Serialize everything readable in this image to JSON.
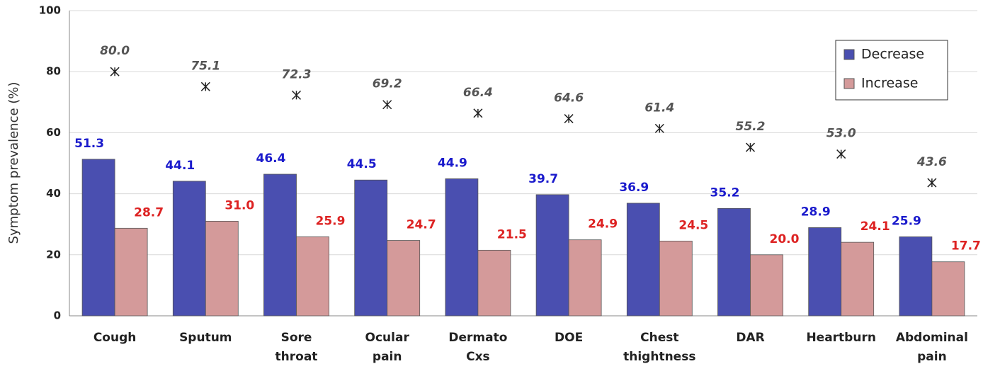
{
  "chart_data": {
    "type": "bar",
    "y_label": "Symptom prevalence (%)",
    "categories": [
      "Cough",
      "Sputum",
      "Sore throat",
      "Ocular pain",
      "Dermato Cxs",
      "DOE",
      "Chest thightness",
      "DAR",
      "Heartburn",
      "Abdominal pain"
    ],
    "series": [
      {
        "name": "Decrease",
        "color": "#4a4fb0",
        "label_color": "#1a1acc",
        "values": [
          51.3,
          44.1,
          46.4,
          44.5,
          44.9,
          39.7,
          36.9,
          35.2,
          28.9,
          25.9
        ]
      },
      {
        "name": "Increase",
        "color": "#d49a9a",
        "label_color": "#dd2222",
        "values": [
          28.7,
          31.0,
          25.9,
          24.7,
          21.5,
          24.9,
          24.5,
          20.0,
          24.1,
          17.7
        ],
        "value_labels": [
          "28.7",
          "31.0",
          "25.9",
          "24.7",
          "21.5",
          "24.9",
          "24.5",
          "20.0",
          "24.1",
          "17.7"
        ]
      },
      {
        "type": "scatter",
        "marker": "asterisk",
        "color": "#222222",
        "label_color": "#555555",
        "values": [
          80.0,
          75.1,
          72.3,
          69.2,
          66.4,
          64.6,
          61.4,
          55.2,
          53.0,
          43.6
        ],
        "value_labels": [
          "80.0",
          "75.1",
          "72.3",
          "69.2",
          "66.4",
          "64.6",
          "61.4",
          "55.2",
          "53.0",
          "43.6"
        ]
      }
    ],
    "ylim": [
      0,
      100
    ],
    "yticks": [
      0,
      20,
      40,
      60,
      80,
      100
    ],
    "grid": true,
    "legend": "top-right"
  }
}
